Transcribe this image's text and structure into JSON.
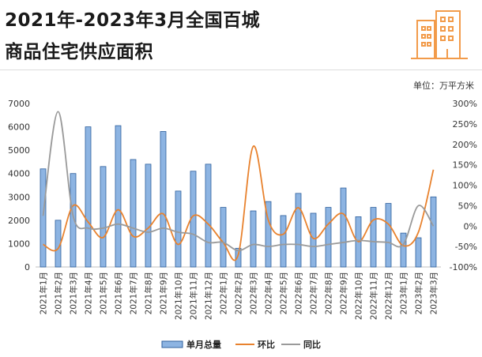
{
  "title_line1": "2021年-2023年3月全国百城",
  "title_line2": "商品住宅供应面积",
  "colors": {
    "bar_fill": "#8db4e2",
    "bar_stroke": "#2e5f9c",
    "mom_line": "#e8822e",
    "yoy_line": "#9a9a9a",
    "icon": "#f29b4a"
  },
  "icon": "building-icon",
  "chart_data": {
    "type": "bar",
    "unit_label": "单位：万平方米",
    "categories": [
      "2021年1月",
      "2021年2月",
      "2021年3月",
      "2021年4月",
      "2021年5月",
      "2021年6月",
      "2021年7月",
      "2021年8月",
      "2021年9月",
      "2021年10月",
      "2021年11月",
      "2021年12月",
      "2022年1月",
      "2022年2月",
      "2022年3月",
      "2022年4月",
      "2022年5月",
      "2022年6月",
      "2022年7月",
      "2022年8月",
      "2022年9月",
      "2022年10月",
      "2022年11月",
      "2022年12月",
      "2023年1月",
      "2023年2月",
      "2023年3月"
    ],
    "y_left": {
      "min": 0,
      "max": 7000,
      "ticks": [
        "0",
        "1000",
        "2000",
        "3000",
        "4000",
        "5000",
        "6000",
        "7000"
      ]
    },
    "y_right": {
      "min": -100,
      "max": 300,
      "ticks": [
        "-100%",
        "-50%",
        "0%",
        "50%",
        "100%",
        "150%",
        "200%",
        "250%",
        "300%"
      ]
    },
    "series": [
      {
        "name": "单月总量",
        "type": "bar",
        "axis": "left",
        "values": [
          4200,
          2000,
          4000,
          6000,
          4300,
          6050,
          4600,
          4400,
          5800,
          3250,
          4100,
          4400,
          2550,
          800,
          2400,
          2800,
          2200,
          3150,
          2300,
          2550,
          3380,
          2150,
          2550,
          2720,
          1450,
          1250,
          3000
        ]
      },
      {
        "name": "环比",
        "type": "line",
        "axis": "right",
        "values": [
          -45,
          -55,
          50,
          10,
          -28,
          40,
          -25,
          -5,
          30,
          -45,
          25,
          5,
          -40,
          -70,
          195,
          15,
          -20,
          45,
          -30,
          5,
          30,
          -38,
          15,
          5,
          -48,
          -15,
          138
        ]
      },
      {
        "name": "同比",
        "type": "line",
        "axis": "right",
        "values": [
          25,
          280,
          25,
          -5,
          -5,
          5,
          -5,
          -15,
          -5,
          -15,
          -20,
          -40,
          -40,
          -60,
          -45,
          -50,
          -45,
          -45,
          -50,
          -45,
          -40,
          -35,
          -38,
          -40,
          -45,
          50,
          0
        ]
      }
    ],
    "legend_position": "bottom",
    "grid": false
  }
}
